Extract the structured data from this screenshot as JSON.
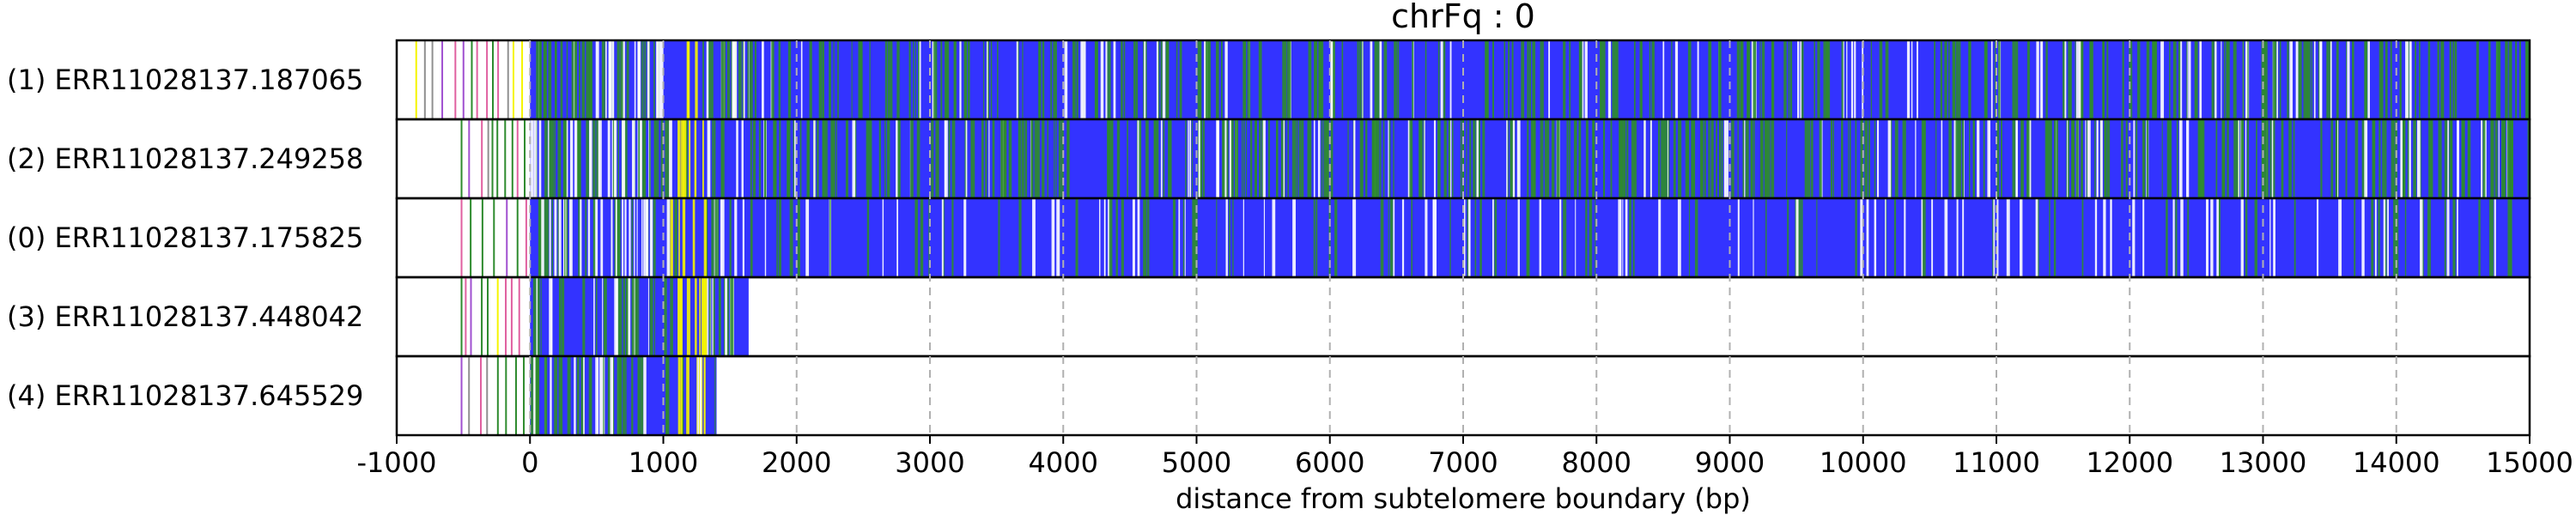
{
  "chart_data": {
    "type": "bar",
    "title": "chrFq : 0",
    "xlabel": "distance from subtelomere boundary (bp)",
    "ylabel": "",
    "xlim": [
      -1000,
      15000
    ],
    "xticks": [
      -1000,
      0,
      1000,
      2000,
      3000,
      4000,
      5000,
      6000,
      7000,
      8000,
      9000,
      10000,
      11000,
      12000,
      13000,
      14000,
      15000
    ],
    "grid": "x-dashed",
    "colors": {
      "blue": "#3333ff",
      "green": "#2e8b2e",
      "yellow": "#f5f500",
      "white": "#ffffff",
      "purple": "#a050d0",
      "pink": "#e060a0",
      "gray": "#909090"
    },
    "reads": [
      {
        "label": "(1) ERR11028137.187065",
        "start": -860,
        "end": 15000,
        "dense_start": 0,
        "green_level": 0.25
      },
      {
        "label": "(2) ERR11028137.249258",
        "start": -520,
        "end": 15000,
        "dense_start": 0,
        "green_level": 0.35
      },
      {
        "label": "(0) ERR11028137.175825",
        "start": -520,
        "end": 15000,
        "dense_start": 0,
        "green_level": 0.08
      },
      {
        "label": "(3) ERR11028137.448042",
        "start": -520,
        "end": 1640,
        "dense_start": 0,
        "green_level": 0.15
      },
      {
        "label": "(4) ERR11028137.645529",
        "start": -520,
        "end": 1400,
        "dense_start": 0,
        "green_level": 0.12
      }
    ]
  }
}
